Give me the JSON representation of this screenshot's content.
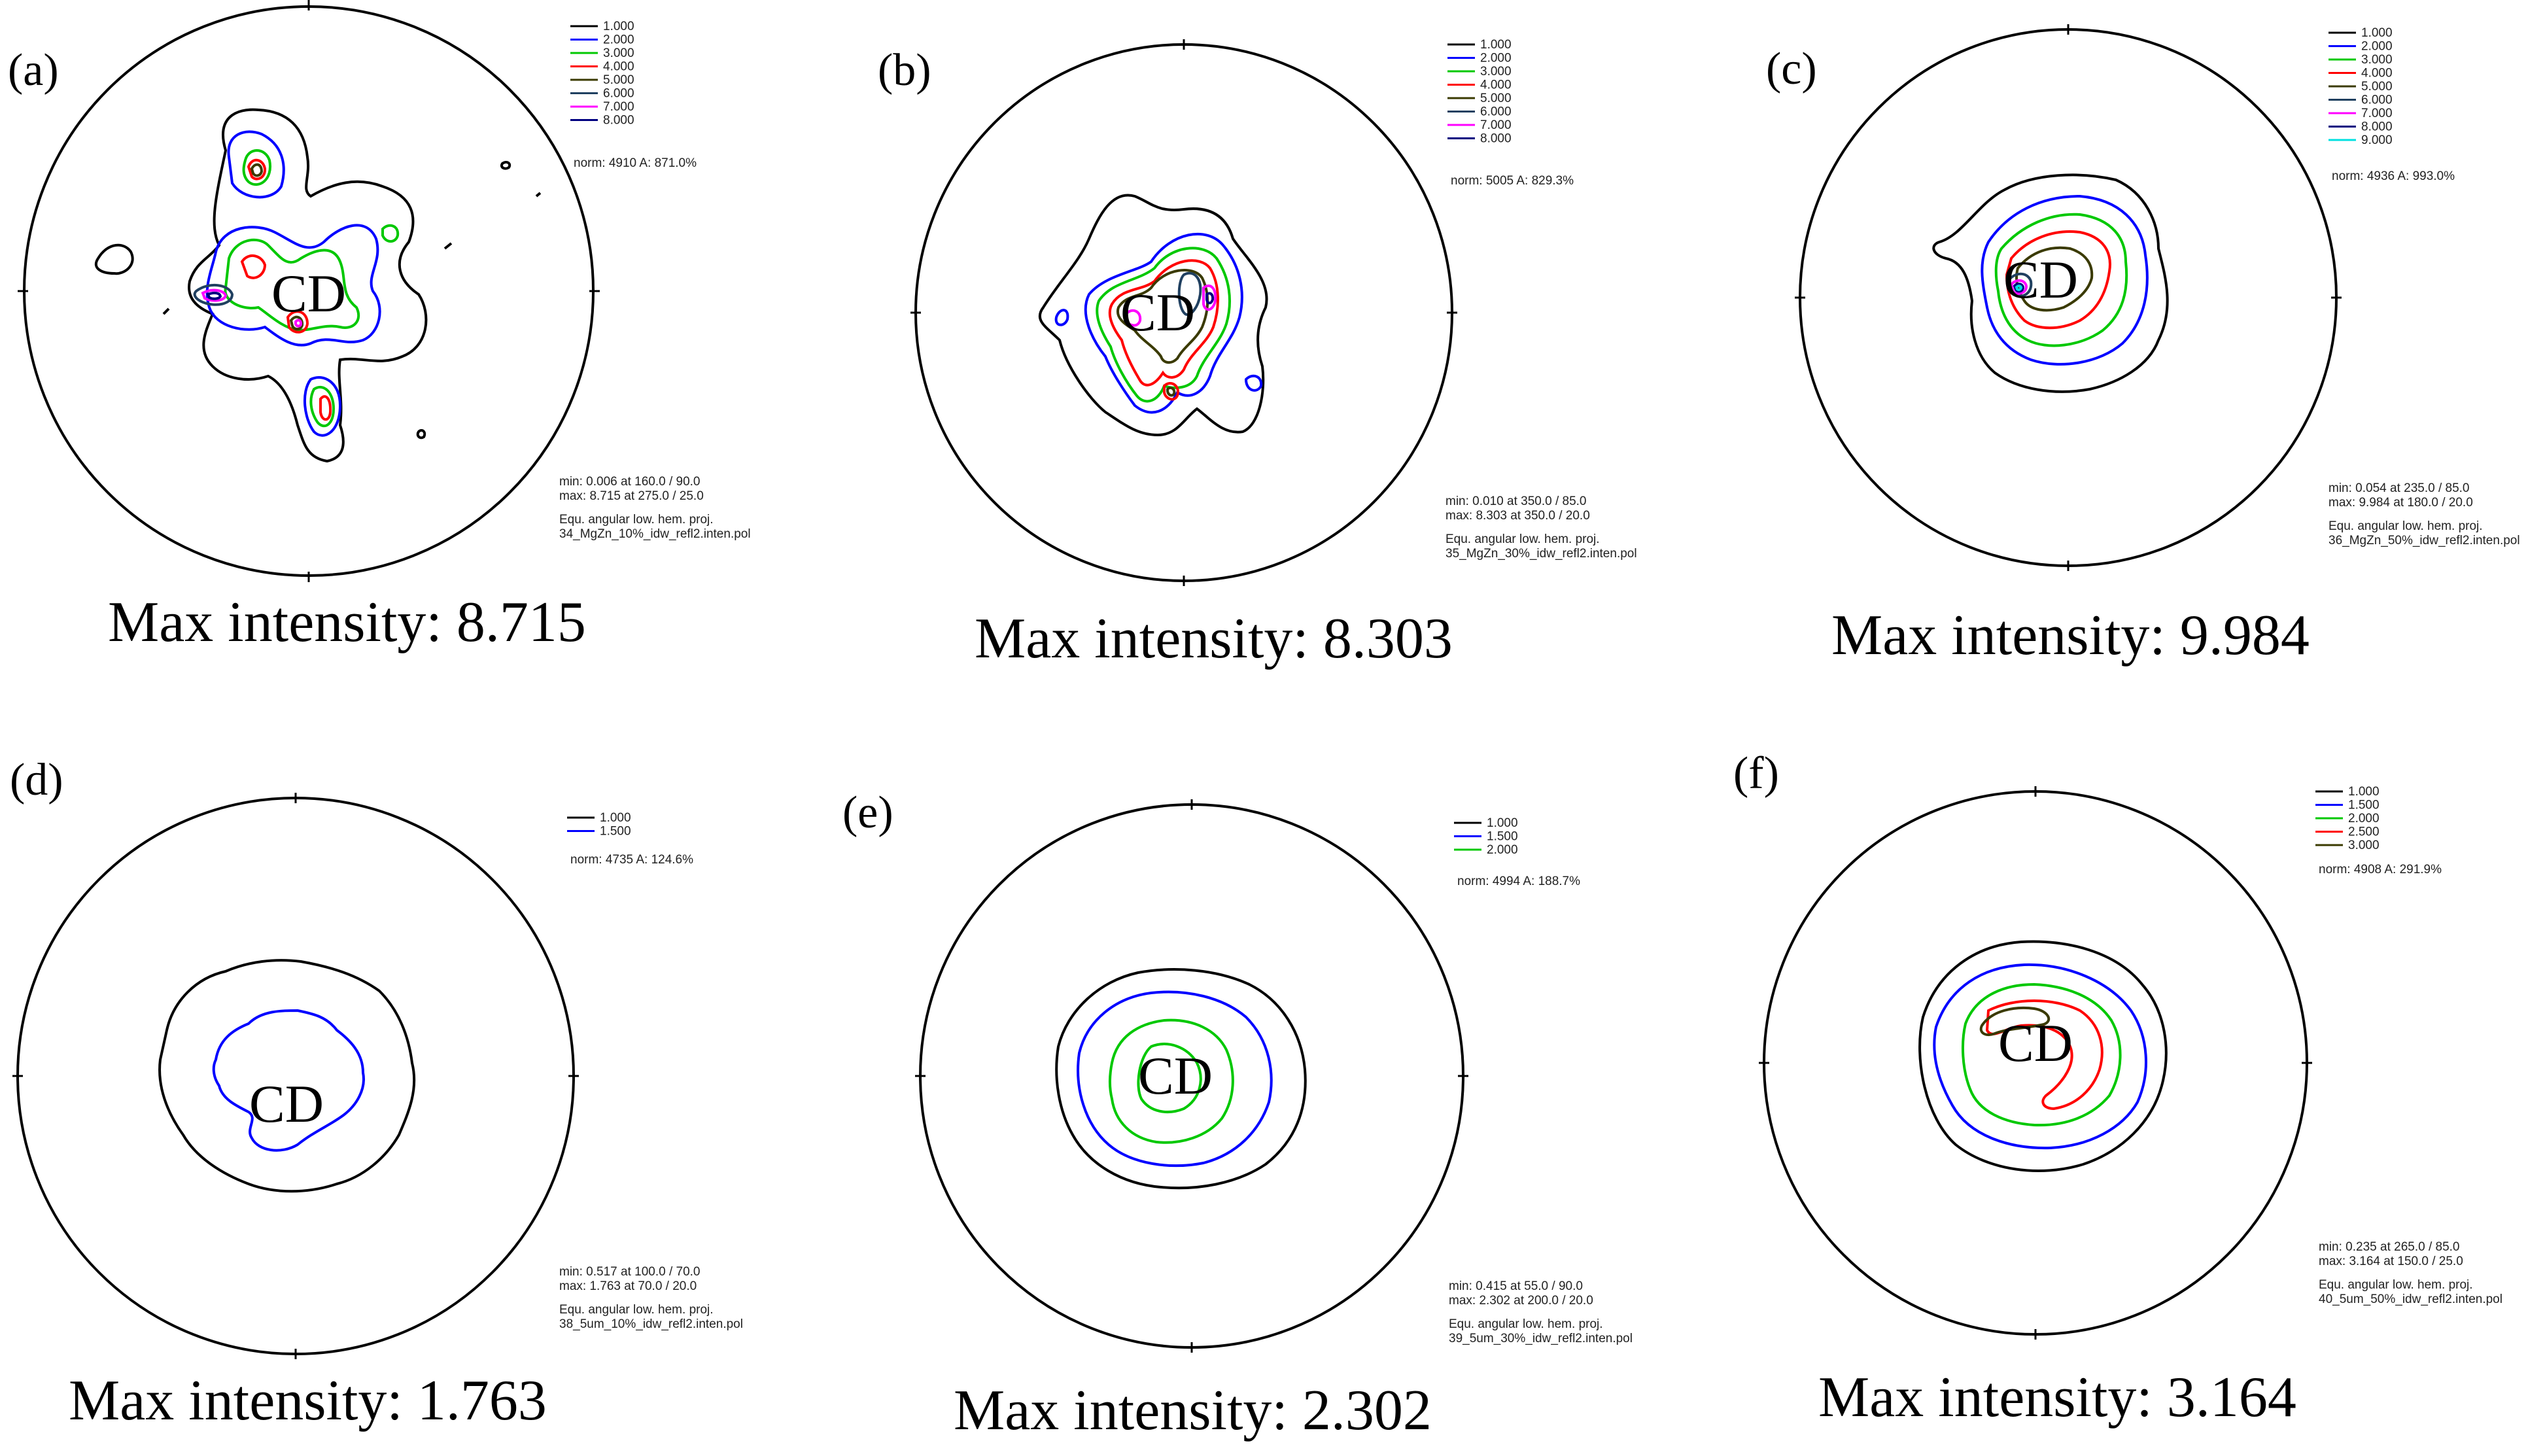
{
  "figure": {
    "panels": [
      {
        "id": "a",
        "label": "(a)",
        "center_label": "CD",
        "legend": [
          {
            "value": "1.000",
            "color": "#000000"
          },
          {
            "value": "2.000",
            "color": "#0000ff"
          },
          {
            "value": "3.000",
            "color": "#00c800"
          },
          {
            "value": "4.000",
            "color": "#ff0000"
          },
          {
            "value": "5.000",
            "color": "#3a3a00"
          },
          {
            "value": "6.000",
            "color": "#204060"
          },
          {
            "value": "7.000",
            "color": "#ff00ff"
          },
          {
            "value": "8.000",
            "color": "#000080"
          }
        ],
        "norm": "norm:  4910    A:  871.0%",
        "min": "min:  0.006  at   160.0 / 90.0",
        "max": "max:  8.715  at   275.0 / 25.0",
        "proj": "Equ. angular low. hem. proj.",
        "file": "34_MgZn_10%_idw_refl2.inten.pol",
        "caption": "Max intensity: 8.715"
      },
      {
        "id": "b",
        "label": "(b)",
        "center_label": "CD",
        "legend": [
          {
            "value": "1.000",
            "color": "#000000"
          },
          {
            "value": "2.000",
            "color": "#0000ff"
          },
          {
            "value": "3.000",
            "color": "#00c800"
          },
          {
            "value": "4.000",
            "color": "#ff0000"
          },
          {
            "value": "5.000",
            "color": "#3a3a00"
          },
          {
            "value": "6.000",
            "color": "#204060"
          },
          {
            "value": "7.000",
            "color": "#ff00ff"
          },
          {
            "value": "8.000",
            "color": "#000080"
          }
        ],
        "norm": "norm:  5005    A:  829.3%",
        "min": "min:  0.010  at   350.0 / 85.0",
        "max": "max:  8.303  at   350.0 / 20.0",
        "proj": "Equ. angular low. hem. proj.",
        "file": "35_MgZn_30%_idw_refl2.inten.pol",
        "caption": "Max intensity: 8.303"
      },
      {
        "id": "c",
        "label": "(c)",
        "center_label": "CD",
        "legend": [
          {
            "value": "1.000",
            "color": "#000000"
          },
          {
            "value": "2.000",
            "color": "#0000ff"
          },
          {
            "value": "3.000",
            "color": "#00c800"
          },
          {
            "value": "4.000",
            "color": "#ff0000"
          },
          {
            "value": "5.000",
            "color": "#3a3a00"
          },
          {
            "value": "6.000",
            "color": "#204060"
          },
          {
            "value": "7.000",
            "color": "#ff00ff"
          },
          {
            "value": "8.000",
            "color": "#000080"
          },
          {
            "value": "9.000",
            "color": "#00e0e0"
          }
        ],
        "norm": "norm:  4936    A:  993.0%",
        "min": "min:  0.054  at   235.0 / 85.0",
        "max": "max:  9.984  at   180.0 / 20.0",
        "proj": "Equ. angular low. hem. proj.",
        "file": "36_MgZn_50%_idw_refl2.inten.pol",
        "caption": "Max intensity: 9.984"
      },
      {
        "id": "d",
        "label": "(d)",
        "center_label": "CD",
        "legend": [
          {
            "value": "1.000",
            "color": "#000000"
          },
          {
            "value": "1.500",
            "color": "#0000ff"
          }
        ],
        "norm": "norm:  4735    A:  124.6%",
        "min": "min:  0.517  at   100.0 / 70.0",
        "max": "max:  1.763  at   70.0 / 20.0",
        "proj": "Equ. angular low. hem. proj.",
        "file": "38_5um_10%_idw_refl2.inten.pol",
        "caption": "Max intensity: 1.763"
      },
      {
        "id": "e",
        "label": "(e)",
        "center_label": "CD",
        "legend": [
          {
            "value": "1.000",
            "color": "#000000"
          },
          {
            "value": "1.500",
            "color": "#0000ff"
          },
          {
            "value": "2.000",
            "color": "#00c800"
          }
        ],
        "norm": "norm:  4994    A:  188.7%",
        "min": "min:  0.415  at   55.0 / 90.0",
        "max": "max:  2.302  at   200.0 / 20.0",
        "proj": "Equ. angular low. hem. proj.",
        "file": "39_5um_30%_idw_refl2.inten.pol",
        "caption": "Max intensity: 2.302"
      },
      {
        "id": "f",
        "label": "(f)",
        "center_label": "CD",
        "legend": [
          {
            "value": "1.000",
            "color": "#000000"
          },
          {
            "value": "1.500",
            "color": "#0000ff"
          },
          {
            "value": "2.000",
            "color": "#00c800"
          },
          {
            "value": "2.500",
            "color": "#ff0000"
          },
          {
            "value": "3.000",
            "color": "#3a3a00"
          }
        ],
        "norm": "norm:  4908    A:  291.9%",
        "min": "min:  0.235  at   265.0 / 85.0",
        "max": "max:  3.164  at   150.0 / 25.0",
        "proj": "Equ. angular low. hem. proj.",
        "file": "40_5um_50%_idw_refl2.inten.pol",
        "caption": "Max intensity: 3.164"
      }
    ]
  }
}
